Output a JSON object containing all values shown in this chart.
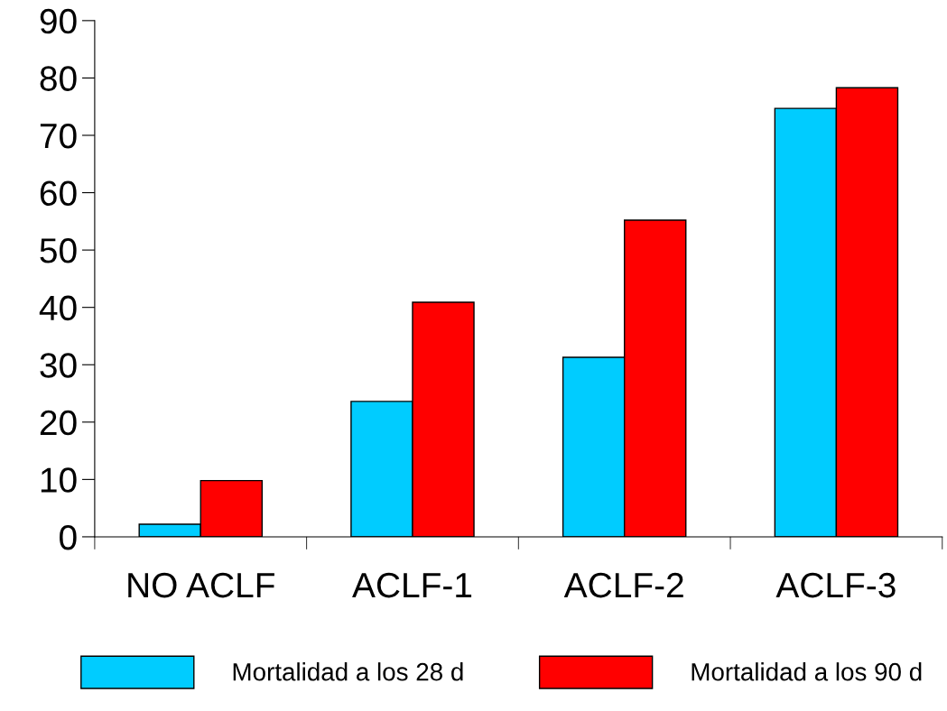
{
  "chart_data": {
    "type": "bar",
    "categories": [
      "NO ACLF",
      "ACLF-1",
      "ACLF-2",
      "ACLF-3"
    ],
    "series": [
      {
        "name": "Mortalidad a los 28 d",
        "color": "#00ccff",
        "values": [
          2.2,
          23.6,
          31.3,
          74.7
        ]
      },
      {
        "name": "Mortalidad a los 90 d",
        "color": "#ff0000",
        "values": [
          9.8,
          40.9,
          55.2,
          78.3
        ]
      }
    ],
    "ylim": [
      0,
      90
    ],
    "yticks": [
      0,
      10,
      20,
      30,
      40,
      50,
      60,
      70,
      80,
      90
    ],
    "grid": false,
    "legend": "bottom"
  }
}
